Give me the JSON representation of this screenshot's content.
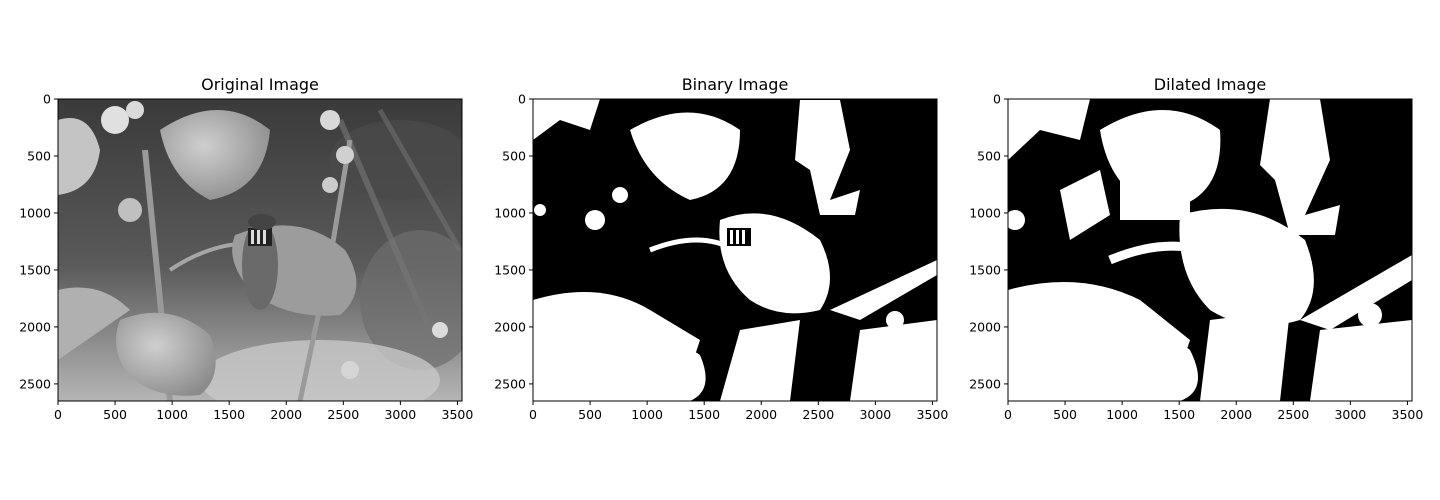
{
  "figure": {
    "panels": [
      {
        "title": "Original Image",
        "x_ticks": [
          "0",
          "500",
          "1000",
          "1500",
          "2000",
          "2500",
          "3000",
          "3500"
        ],
        "y_ticks": [
          "0",
          "500",
          "1000",
          "1500",
          "2000",
          "2500"
        ],
        "content": "grayscale photo of a hoverfly on leaves with flower buds"
      },
      {
        "title": "Binary Image",
        "x_ticks": [
          "0",
          "500",
          "1000",
          "1500",
          "2000",
          "2500",
          "3000",
          "3500"
        ],
        "y_ticks": [
          "0",
          "500",
          "1000",
          "1500",
          "2000",
          "2500"
        ],
        "content": "black and white thresholded version of the photo"
      },
      {
        "title": "Dilated Image",
        "x_ticks": [
          "0",
          "500",
          "1000",
          "1500",
          "2000",
          "2500",
          "3000",
          "3500"
        ],
        "y_ticks": [
          "0",
          "500",
          "1000",
          "1500",
          "2000",
          "2500"
        ],
        "content": "morphologically dilated binary mask"
      }
    ],
    "image_width": 3540,
    "image_height": 2650,
    "colors": {
      "frame": "#000000",
      "background": "#ffffff",
      "mask_white": "#ffffff",
      "mask_black": "#000000"
    }
  }
}
